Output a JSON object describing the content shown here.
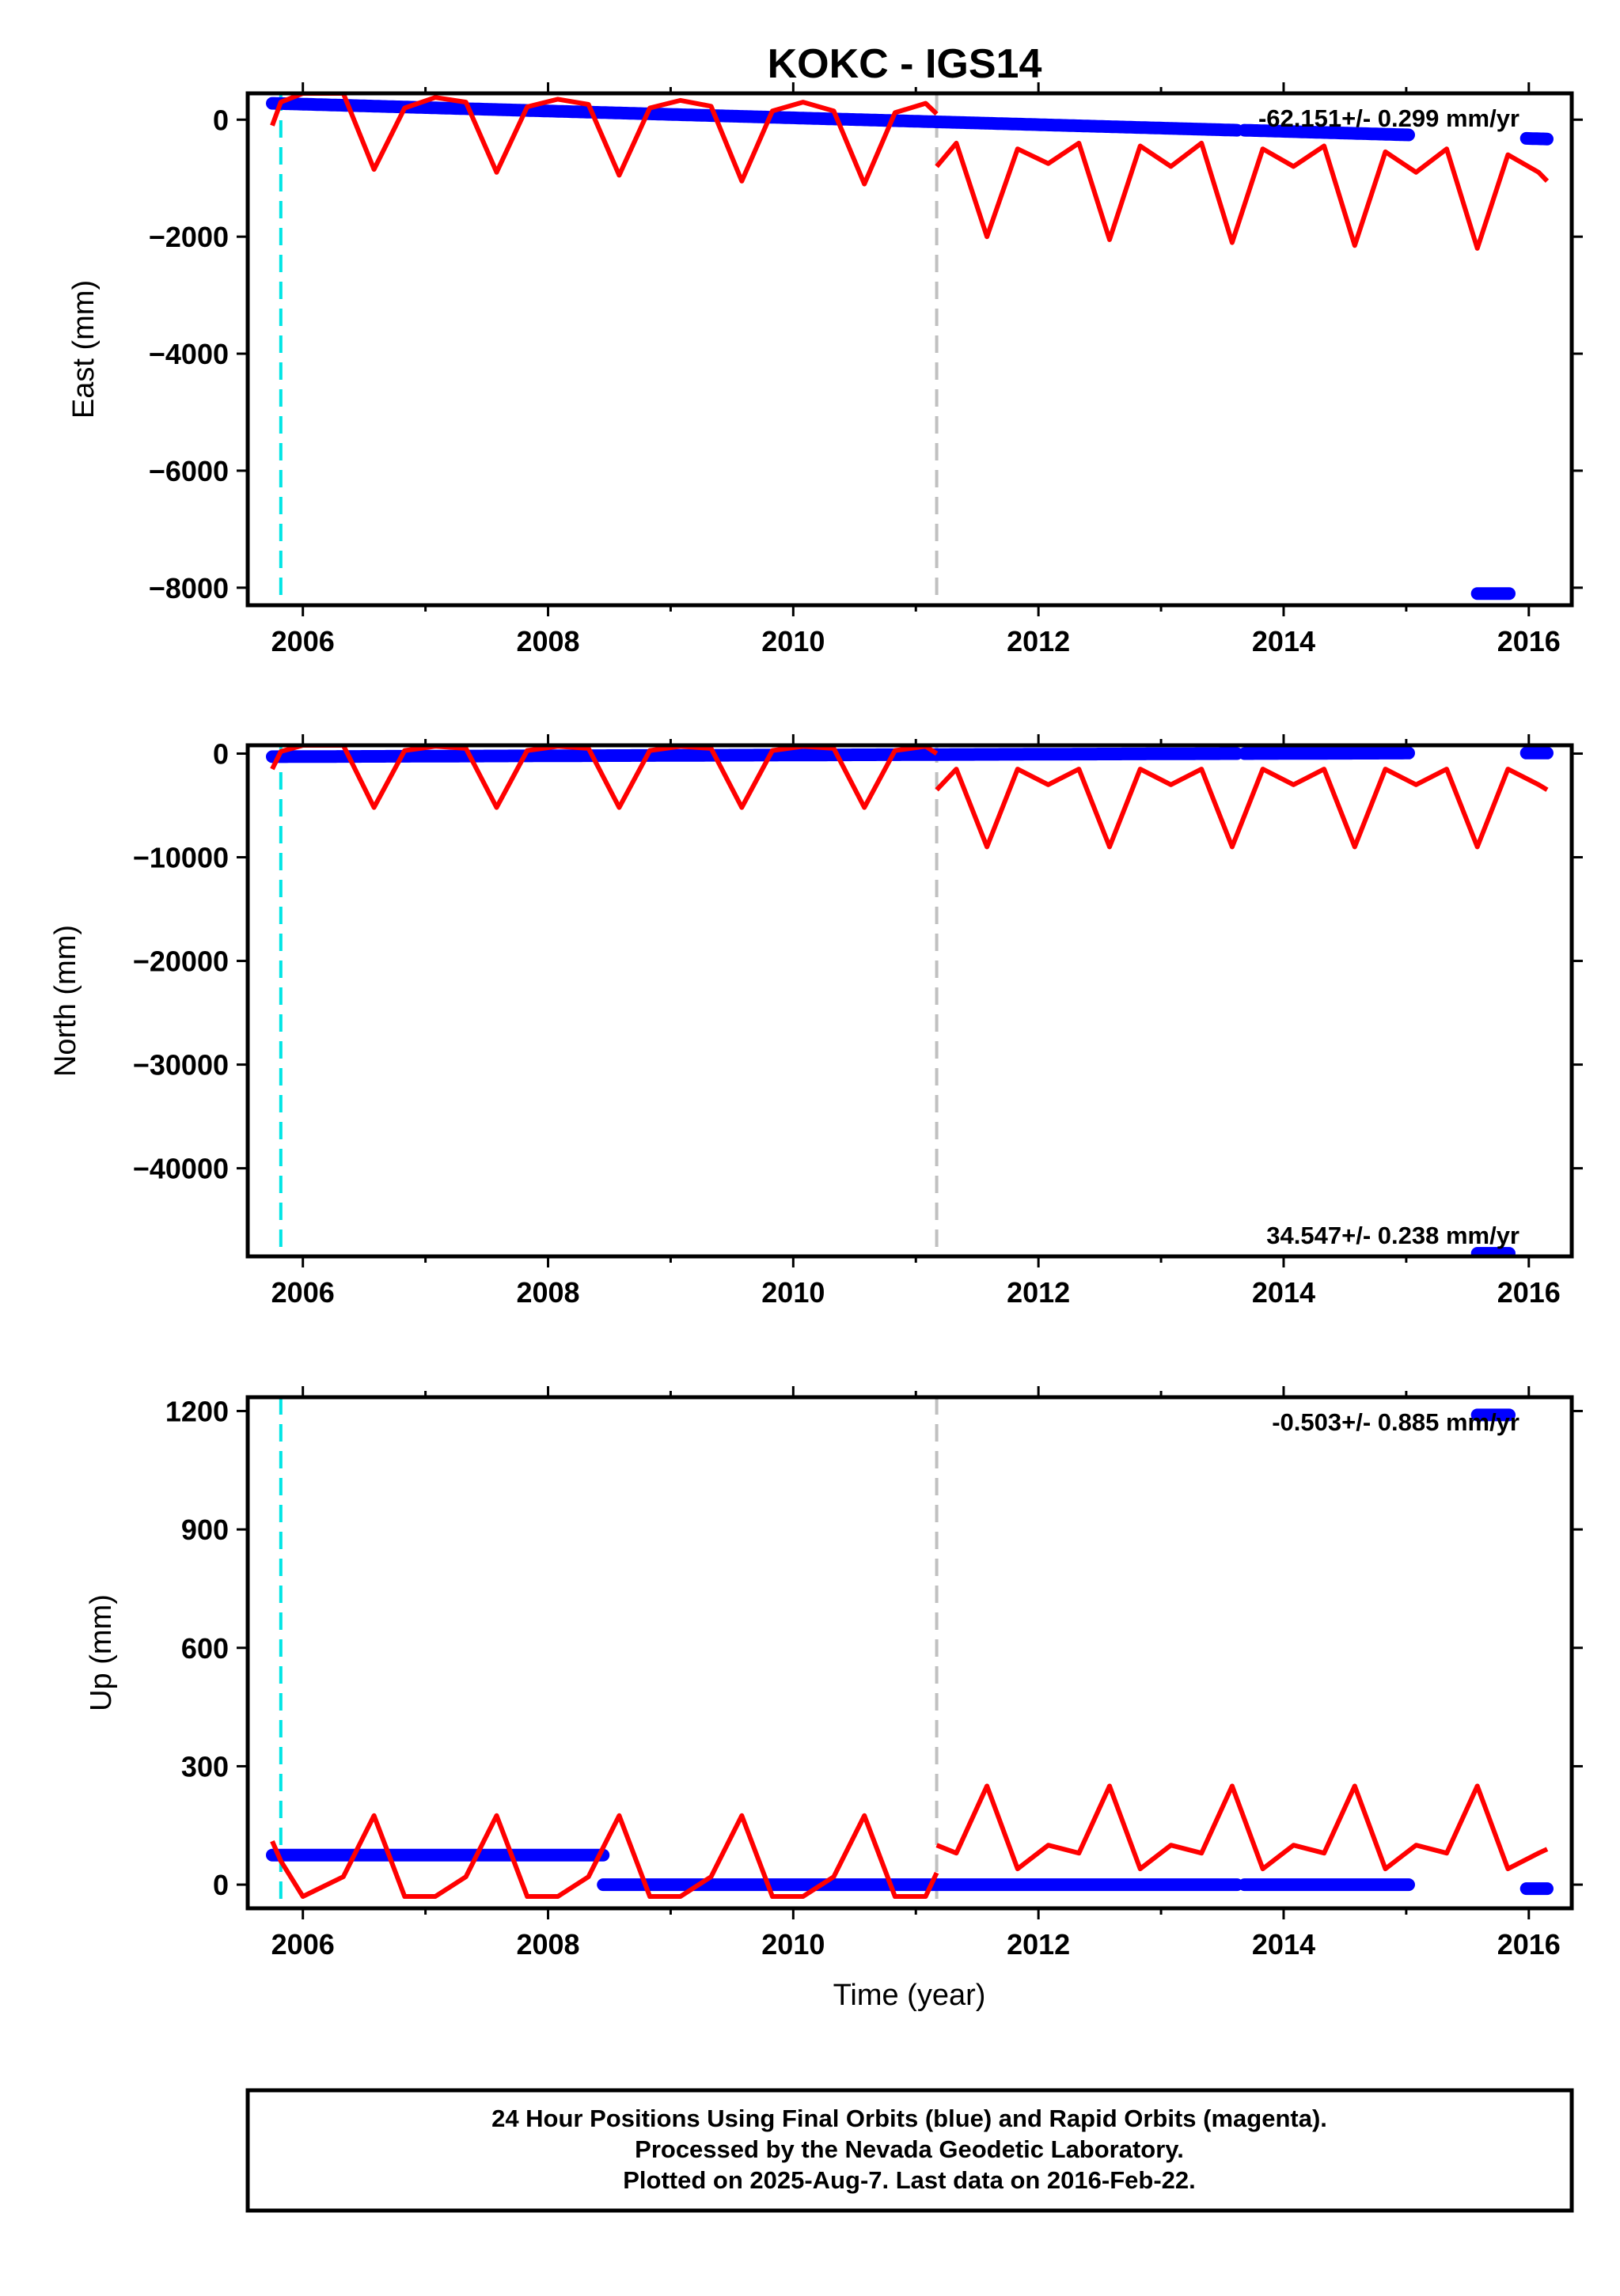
{
  "chart_data": {
    "title": "KOKC - IGS14",
    "type": "scatter",
    "xlabel": "Time (year)",
    "xlim": [
      2005.55,
      2016.35
    ],
    "xticks": [
      2006,
      2008,
      2010,
      2012,
      2014,
      2016
    ],
    "xtick_labels": [
      "2006",
      "2008",
      "2010",
      "2012",
      "2014",
      "2016"
    ],
    "grid": false,
    "colors": {
      "final_orbits": "#0000ff",
      "model_fit": "#ff0000",
      "equipment_change": "#00e5e5",
      "other_offset": "#c0c0c0"
    },
    "events": [
      {
        "type": "equipment_change",
        "x": 2005.82
      },
      {
        "type": "offset",
        "x": 2011.17
      }
    ],
    "panels": [
      {
        "id": "east",
        "ylabel": "East (mm)",
        "ylim": [
          -8300,
          450
        ],
        "yticks": [
          0,
          -2000,
          -4000,
          -6000,
          -8000
        ],
        "ytick_labels": [
          "0",
          "−2000",
          "−4000",
          "−6000",
          "−8000"
        ],
        "annotation": "-62.151+/- 0.299 mm/yr",
        "series": [
          {
            "type": "scatter",
            "segments": [
              {
                "x": [
                  2005.75,
                  2013.62
                ],
                "y": [
                  280,
                  -180
                ]
              },
              {
                "x": [
                  2013.68,
                  2015.02
                ],
                "y": [
                  -180,
                  -260
                ]
              },
              {
                "x": [
                  2015.98,
                  2016.15
                ],
                "y": [
                  -320,
                  -330
                ]
              },
              {
                "x": [
                  2015.58,
                  2015.84
                ],
                "y": [
                  -8100,
                  -8100
                ]
              }
            ]
          },
          {
            "type": "line",
            "segments": [
              {
                "x": [
                  2005.75,
                  2005.82,
                  2006.0,
                  2006.33,
                  2006.58,
                  2006.83,
                  2007.08,
                  2007.33,
                  2007.58,
                  2007.83,
                  2008.08,
                  2008.33,
                  2008.58,
                  2008.83,
                  2009.08,
                  2009.33,
                  2009.58,
                  2009.83,
                  2010.08,
                  2010.33,
                  2010.58,
                  2010.83,
                  2011.08,
                  2011.17
                ],
                "y": [
                  -100,
                  300,
                  450,
                  450,
                  -850,
                  200,
                  380,
                  300,
                  -900,
                  220,
                  350,
                  260,
                  -950,
                  200,
                  330,
                  230,
                  -1050,
                  150,
                  300,
                  150,
                  -1100,
                  120,
                  280,
                  100
                ]
              },
              {
                "x": [
                  2011.17,
                  2011.33,
                  2011.58,
                  2011.83,
                  2012.08,
                  2012.33,
                  2012.58,
                  2012.83,
                  2013.08,
                  2013.33,
                  2013.58,
                  2013.83,
                  2014.08,
                  2014.33,
                  2014.58,
                  2014.83,
                  2015.08,
                  2015.33,
                  2015.58,
                  2015.83,
                  2016.08,
                  2016.15
                ],
                "y": [
                  -800,
                  -400,
                  -2000,
                  -500,
                  -750,
                  -400,
                  -2050,
                  -450,
                  -800,
                  -400,
                  -2100,
                  -500,
                  -800,
                  -450,
                  -2150,
                  -550,
                  -900,
                  -500,
                  -2200,
                  -600,
                  -900,
                  -1050
                ]
              }
            ]
          }
        ]
      },
      {
        "id": "north",
        "ylabel": "North (mm)",
        "ylim": [
          -48500,
          800
        ],
        "yticks": [
          0,
          -10000,
          -20000,
          -30000,
          -40000
        ],
        "ytick_labels": [
          "0",
          "−10000",
          "−20000",
          "−30000",
          "−40000"
        ],
        "annotation": "34.547+/- 0.238 mm/yr",
        "series": [
          {
            "type": "scatter",
            "segments": [
              {
                "x": [
                  2005.75,
                  2013.62
                ],
                "y": [
                  -300,
                  0
                ]
              },
              {
                "x": [
                  2013.68,
                  2015.02
                ],
                "y": [
                  0,
                  50
                ]
              },
              {
                "x": [
                  2015.98,
                  2016.15
                ],
                "y": [
                  50,
                  50
                ]
              },
              {
                "x": [
                  2015.58,
                  2015.84
                ],
                "y": [
                  -48200,
                  -48200
                ]
              }
            ]
          },
          {
            "type": "line",
            "segments": [
              {
                "x": [
                  2005.75,
                  2005.82,
                  2006.0,
                  2006.33,
                  2006.58,
                  2006.83,
                  2007.08,
                  2007.33,
                  2007.58,
                  2007.83,
                  2008.08,
                  2008.33,
                  2008.58,
                  2008.83,
                  2009.08,
                  2009.33,
                  2009.58,
                  2009.83,
                  2010.08,
                  2010.33,
                  2010.58,
                  2010.83,
                  2011.08,
                  2011.17
                ],
                "y": [
                  -1500,
                  200,
                  800,
                  800,
                  -5200,
                  300,
                  700,
                  500,
                  -5200,
                  300,
                  700,
                  500,
                  -5200,
                  300,
                  700,
                  500,
                  -5200,
                  300,
                  700,
                  500,
                  -5200,
                  300,
                  700,
                  0
                ]
              },
              {
                "x": [
                  2011.17,
                  2011.33,
                  2011.58,
                  2011.83,
                  2012.08,
                  2012.33,
                  2012.58,
                  2012.83,
                  2013.08,
                  2013.33,
                  2013.58,
                  2013.83,
                  2014.08,
                  2014.33,
                  2014.58,
                  2014.83,
                  2015.08,
                  2015.33,
                  2015.58,
                  2015.83,
                  2016.08,
                  2016.15
                ],
                "y": [
                  -3500,
                  -1500,
                  -9000,
                  -1500,
                  -3000,
                  -1500,
                  -9000,
                  -1500,
                  -3000,
                  -1500,
                  -9000,
                  -1500,
                  -3000,
                  -1500,
                  -9000,
                  -1500,
                  -3000,
                  -1500,
                  -9000,
                  -1500,
                  -3000,
                  -3500
                ]
              }
            ]
          }
        ]
      },
      {
        "id": "up",
        "ylabel": "Up (mm)",
        "ylim": [
          -60,
          1235
        ],
        "yticks": [
          1200,
          900,
          600,
          300,
          0
        ],
        "ytick_labels": [
          "1200",
          "900",
          "600",
          "300",
          "0"
        ],
        "annotation": "-0.503+/- 0.885 mm/yr",
        "series": [
          {
            "type": "scatter",
            "segments": [
              {
                "x": [
                  2005.75,
                  2008.45
                ],
                "y": [
                  75,
                  75
                ]
              },
              {
                "x": [
                  2008.45,
                  2013.62
                ],
                "y": [
                  0,
                  0
                ]
              },
              {
                "x": [
                  2013.68,
                  2015.02
                ],
                "y": [
                  0,
                  0
                ]
              },
              {
                "x": [
                  2015.98,
                  2016.15
                ],
                "y": [
                  -10,
                  -10
                ]
              },
              {
                "x": [
                  2015.58,
                  2015.84
                ],
                "y": [
                  1190,
                  1190
                ]
              }
            ]
          },
          {
            "type": "line",
            "segments": [
              {
                "x": [
                  2005.75,
                  2005.82,
                  2006.0,
                  2006.33,
                  2006.58,
                  2006.83,
                  2007.08,
                  2007.33,
                  2007.58,
                  2007.83,
                  2008.08,
                  2008.33,
                  2008.58,
                  2008.83,
                  2009.08,
                  2009.33,
                  2009.58,
                  2009.83,
                  2010.08,
                  2010.33,
                  2010.58,
                  2010.83,
                  2011.08,
                  2011.17
                ],
                "y": [
                  110,
                  60,
                  -30,
                  20,
                  175,
                  -30,
                  -30,
                  20,
                  175,
                  -30,
                  -30,
                  20,
                  175,
                  -30,
                  -30,
                  20,
                  175,
                  -30,
                  -30,
                  20,
                  175,
                  -30,
                  -30,
                  30
                ]
              },
              {
                "x": [
                  2011.17,
                  2011.33,
                  2011.58,
                  2011.83,
                  2012.08,
                  2012.33,
                  2012.58,
                  2012.83,
                  2013.08,
                  2013.33,
                  2013.58,
                  2013.83,
                  2014.08,
                  2014.33,
                  2014.58,
                  2014.83,
                  2015.08,
                  2015.33,
                  2015.58,
                  2015.83,
                  2016.08,
                  2016.15
                ],
                "y": [
                  100,
                  80,
                  250,
                  40,
                  100,
                  80,
                  250,
                  40,
                  100,
                  80,
                  250,
                  40,
                  100,
                  80,
                  250,
                  40,
                  100,
                  80,
                  250,
                  40,
                  80,
                  90
                ]
              }
            ]
          }
        ]
      }
    ],
    "footer": [
      "24 Hour Positions Using Final Orbits (blue) and Rapid Orbits (magenta).",
      "Processed by the Nevada Geodetic Laboratory.",
      "Plotted on 2025-Aug-7. Last data on 2016-Feb-22."
    ]
  }
}
